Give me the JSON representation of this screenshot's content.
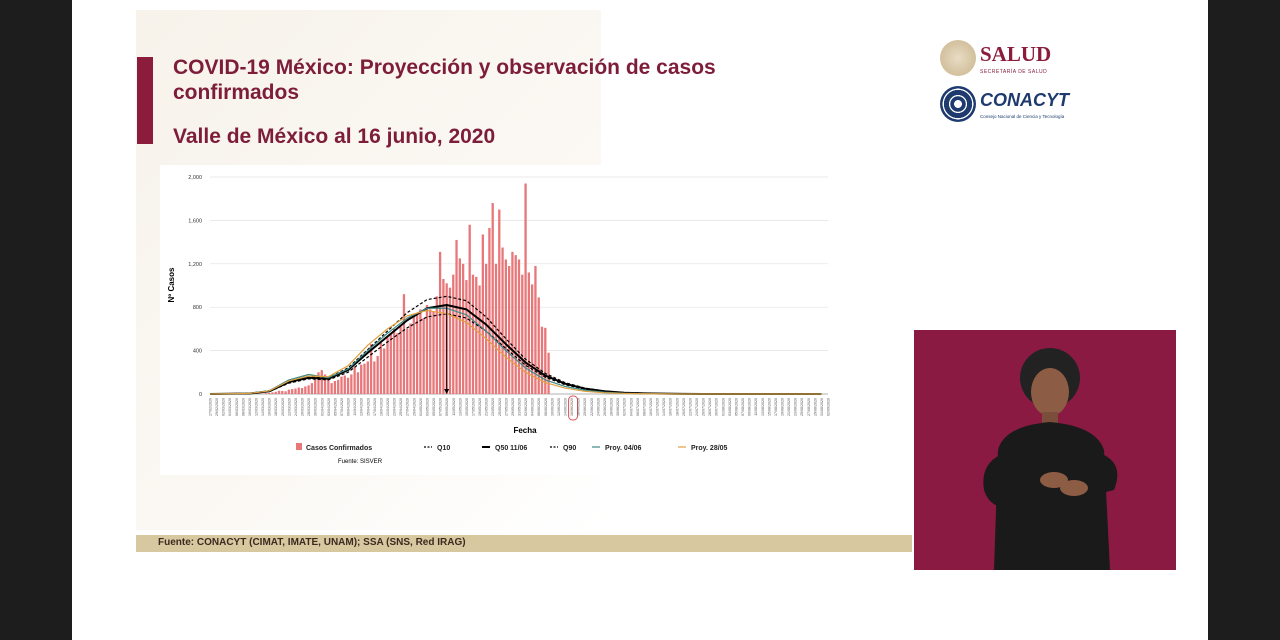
{
  "slide": {
    "title": "COVID-19 México: Proyección y observación de casos confirmados",
    "subtitle": "Valle de México al 16 junio, 2020",
    "footer": "Fuente: CONACYT (CIMAT, IMATE, UNAM);    SSA (SNS, Red IRAG)",
    "logos": {
      "salud": "SALUD",
      "salud_sub": "SECRETARÍA DE SALUD",
      "conacyt": "CONACYT",
      "conacyt_sub": "Consejo Nacional de Ciencia y Tecnología"
    },
    "colors": {
      "maroon": "#7d1d3a",
      "bars": "#e8777a",
      "q50": "#000000",
      "proy0406": "#3d8a86",
      "proy2805": "#e0a040",
      "footer": "#d8c8a0"
    }
  },
  "chart_data": {
    "type": "bar",
    "xlabel": "Fecha",
    "ylabel": "Nº Casos",
    "source": "Fuente: SISVER",
    "ylim": [
      0,
      2000
    ],
    "yticks": [
      0,
      400,
      800,
      1200,
      1600,
      2000
    ],
    "ytick_labels": [
      "0",
      "400",
      "800",
      "1,200",
      "1,600",
      "2,000"
    ],
    "x_start": "27/02/2020",
    "x_days": 188,
    "label_every_days": 2,
    "highlight_date": "16/06/2020",
    "peak_marker_day": 72,
    "bars_start_day": 0,
    "bars": [
      0,
      0,
      0,
      0,
      0,
      0,
      0,
      0,
      0,
      0,
      0,
      0,
      0,
      2,
      3,
      5,
      5,
      8,
      10,
      15,
      20,
      30,
      28,
      25,
      40,
      45,
      50,
      60,
      55,
      70,
      80,
      100,
      150,
      200,
      220,
      180,
      150,
      100,
      120,
      130,
      160,
      170,
      150,
      180,
      250,
      200,
      270,
      280,
      300,
      460,
      300,
      350,
      470,
      420,
      520,
      560,
      600,
      560,
      620,
      920,
      600,
      650,
      720,
      750,
      780,
      700,
      820,
      780,
      760,
      900,
      1310,
      1060,
      1020,
      980,
      1100,
      1420,
      1250,
      1200,
      1050,
      1560,
      1100,
      1080,
      1000,
      1470,
      1200,
      1530,
      1760,
      1200,
      1700,
      1350,
      1240,
      1180,
      1310,
      1280,
      1240,
      1100,
      1940,
      1120,
      1010,
      1180,
      890,
      620,
      610,
      380
    ],
    "series_step_days": 6,
    "series": [
      {
        "name": "Q10",
        "style": "dash",
        "color": "#000000",
        "values": [
          0,
          2,
          5,
          22,
          100,
          140,
          130,
          200,
          340,
          480,
          610,
          710,
          740,
          700,
          580,
          420,
          265,
          155,
          85,
          45,
          22,
          10,
          5,
          2,
          1,
          0,
          0,
          0,
          0,
          0,
          0,
          0
        ]
      },
      {
        "name": "Q50 11/06",
        "style": "solid",
        "color": "#000000",
        "values": [
          0,
          2,
          5,
          25,
          110,
          150,
          140,
          220,
          380,
          530,
          680,
          790,
          820,
          780,
          640,
          460,
          290,
          170,
          95,
          50,
          25,
          12,
          6,
          3,
          1,
          0,
          0,
          0,
          0,
          0,
          0,
          0
        ]
      },
      {
        "name": "Q90",
        "style": "dash",
        "color": "#000000",
        "values": [
          0,
          2,
          6,
          28,
          120,
          165,
          150,
          240,
          410,
          580,
          750,
          870,
          900,
          860,
          710,
          510,
          320,
          190,
          105,
          55,
          28,
          13,
          7,
          3,
          1,
          0,
          0,
          0,
          0,
          0,
          0,
          0
        ]
      },
      {
        "name": "Proy. 04/06",
        "style": "solid",
        "color": "#3d8a86",
        "values": [
          0,
          2,
          6,
          30,
          130,
          180,
          150,
          230,
          400,
          560,
          700,
          790,
          790,
          730,
          580,
          400,
          240,
          130,
          70,
          35,
          16,
          7,
          3,
          1,
          0,
          0,
          0,
          0,
          0,
          0,
          0,
          0
        ]
      },
      {
        "name": "Proy. 28/05",
        "style": "solid",
        "color": "#e0a040",
        "values": [
          0,
          2,
          6,
          28,
          120,
          165,
          160,
          260,
          450,
          600,
          720,
          770,
          740,
          660,
          510,
          340,
          200,
          105,
          55,
          25,
          11,
          5,
          2,
          1,
          0,
          0,
          0,
          0,
          0,
          0,
          0,
          0
        ]
      }
    ],
    "legend": [
      "Casos Confirmados",
      "Q10",
      "Q50 11/06",
      "Q90",
      "Proy. 04/06",
      "Proy. 28/05"
    ],
    "legend_position": "bottom",
    "grid": true
  }
}
